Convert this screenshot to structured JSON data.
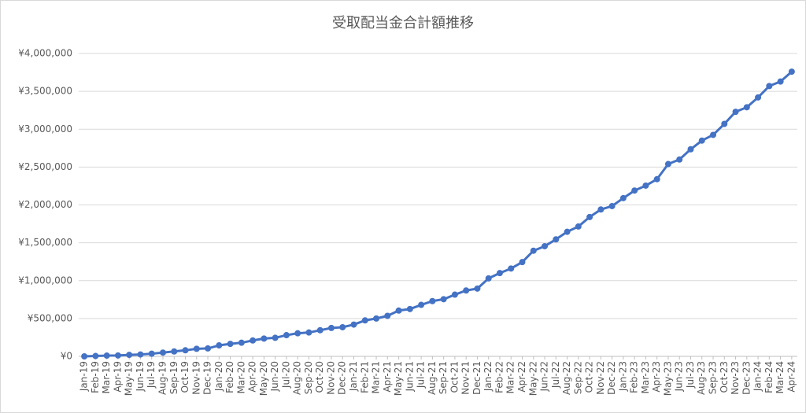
{
  "chart_data": {
    "type": "line",
    "title": "受取配当金合計額推移",
    "categories": [
      "Jan-19",
      "Feb-19",
      "Mar-19",
      "Apr-19",
      "May-19",
      "Jun-19",
      "Jul-19",
      "Aug-19",
      "Sep-19",
      "Oct-19",
      "Nov-19",
      "Dec-19",
      "Jan-20",
      "Feb-20",
      "Mar-20",
      "Apr-20",
      "May-20",
      "Jun-20",
      "Jul-20",
      "Aug-20",
      "Sep-20",
      "Oct-20",
      "Nov-20",
      "Dec-20",
      "Jan-21",
      "Feb-21",
      "Mar-21",
      "Apr-21",
      "May-21",
      "Jun-21",
      "Jul-21",
      "Aug-21",
      "Sep-21",
      "Oct-21",
      "Nov-21",
      "Dec-21",
      "Jan-22",
      "Feb-22",
      "Mar-22",
      "Apr-22",
      "May-22",
      "Jun-22",
      "Jul-22",
      "Aug-22",
      "Sep-22",
      "Oct-22",
      "Nov-22",
      "Dec-22",
      "Jan-23",
      "Feb-23",
      "Mar-23",
      "Apr-23",
      "May-23",
      "Jun-23",
      "Jul-23",
      "Aug-23",
      "Sep-23",
      "Oct-23",
      "Nov-23",
      "Dec-23",
      "Jan-24",
      "Feb-24",
      "Mar-24",
      "Apr-24"
    ],
    "values": [
      0,
      5000,
      10000,
      12000,
      20000,
      25000,
      35000,
      50000,
      65000,
      80000,
      100000,
      105000,
      145000,
      165000,
      180000,
      210000,
      235000,
      245000,
      280000,
      305000,
      315000,
      345000,
      375000,
      385000,
      420000,
      475000,
      500000,
      535000,
      605000,
      625000,
      680000,
      730000,
      755000,
      815000,
      870000,
      895000,
      1030000,
      1100000,
      1160000,
      1245000,
      1395000,
      1455000,
      1545000,
      1645000,
      1715000,
      1840000,
      1940000,
      1985000,
      2090000,
      2190000,
      2255000,
      2340000,
      2540000,
      2600000,
      2735000,
      2850000,
      2925000,
      3070000,
      3230000,
      3290000,
      3420000,
      3570000,
      3630000,
      3760000
    ],
    "color": "#4472c4",
    "ylim": [
      0,
      4000000
    ],
    "yticks": [
      {
        "value": 0,
        "label": "¥0"
      },
      {
        "value": 500000,
        "label": "¥500,000"
      },
      {
        "value": 1000000,
        "label": "¥1,000,000"
      },
      {
        "value": 1500000,
        "label": "¥1,500,000"
      },
      {
        "value": 2000000,
        "label": "¥2,000,000"
      },
      {
        "value": 2500000,
        "label": "¥2,500,000"
      },
      {
        "value": 3000000,
        "label": "¥3,000,000"
      },
      {
        "value": 3500000,
        "label": "¥3,500,000"
      },
      {
        "value": 4000000,
        "label": "¥4,000,000"
      }
    ],
    "grid": true
  }
}
